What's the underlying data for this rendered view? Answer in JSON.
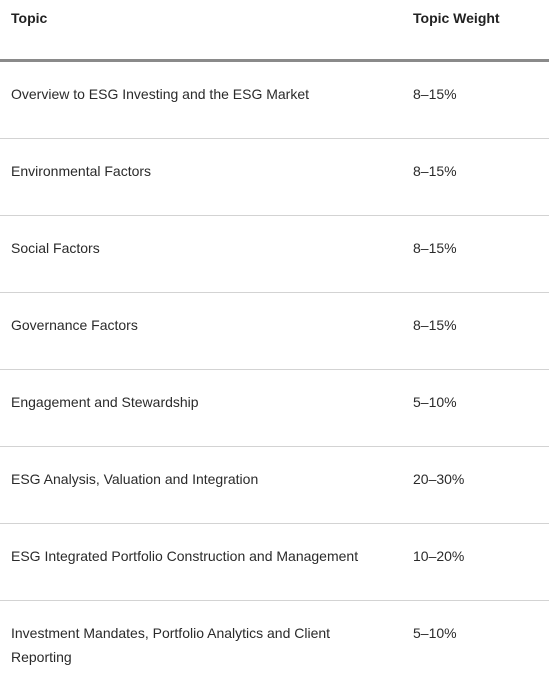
{
  "table": {
    "header": {
      "topic": "Topic",
      "weight": "Topic Weight"
    },
    "rows": [
      {
        "topic": "Overview to ESG Investing and the ESG Market",
        "weight": "8–15%"
      },
      {
        "topic": "Environmental Factors",
        "weight": "8–15%"
      },
      {
        "topic": "Social Factors",
        "weight": "8–15%"
      },
      {
        "topic": "Governance Factors",
        "weight": "8–15%"
      },
      {
        "topic": "Engagement and Stewardship",
        "weight": "5–10%"
      },
      {
        "topic": "ESG Analysis, Valuation and Integration",
        "weight": "20–30%"
      },
      {
        "topic": "ESG Integrated Portfolio Construction and Management",
        "weight": "10–20%"
      },
      {
        "topic": "Investment Mandates, Portfolio Analytics and Client Reporting",
        "weight": "5–10%"
      }
    ]
  }
}
